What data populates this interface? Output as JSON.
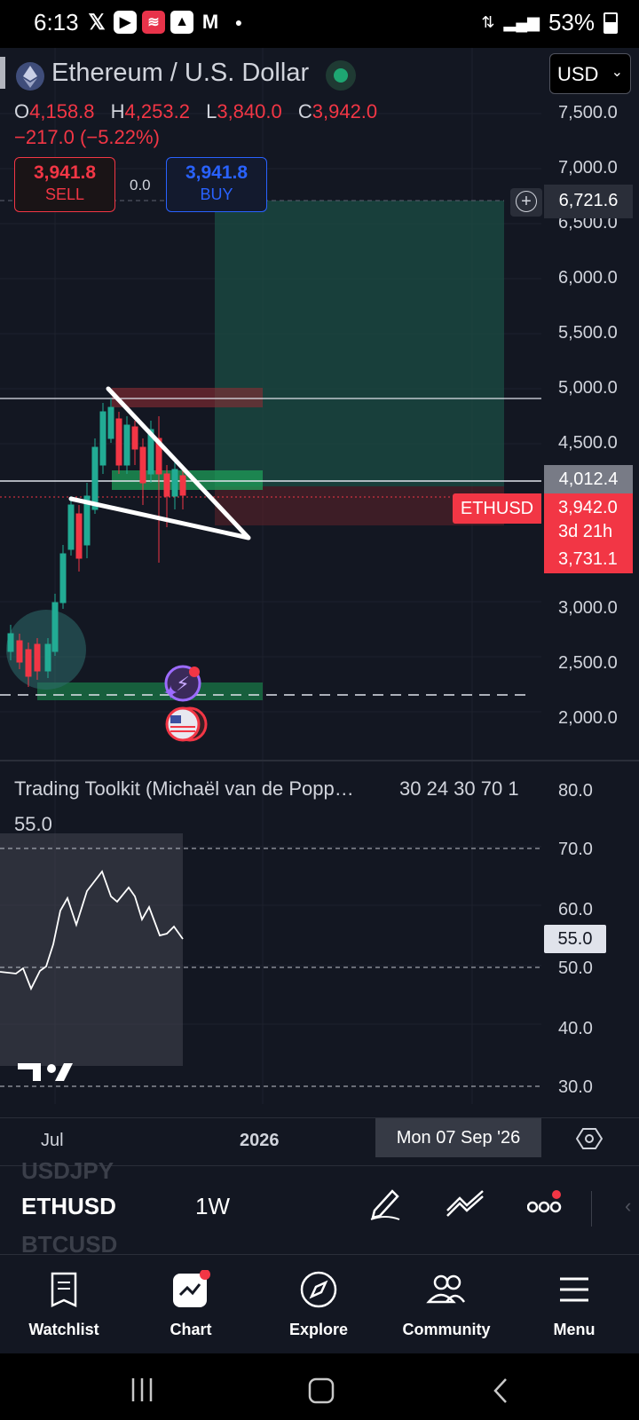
{
  "status_bar": {
    "time": "6:13",
    "battery": "53%"
  },
  "header": {
    "symbol_title": "Ethereum / U.S. Dollar",
    "currency": "USD",
    "ohlc": [
      {
        "key": "O",
        "value": "4,158.8"
      },
      {
        "key": "H",
        "value": "4,253.2"
      },
      {
        "key": "L",
        "value": "3,840.0"
      },
      {
        "key": "C",
        "value": "3,942.0"
      }
    ],
    "change": "−217.0 (−5.22%)"
  },
  "trade": {
    "sell_price": "3,941.8",
    "sell_label": "SELL",
    "spread": "0.0",
    "buy_price": "3,941.8",
    "buy_label": "BUY"
  },
  "price_axis": {
    "ticks": [
      "7,500.0",
      "7,000.0",
      "6,500.0",
      "6,000.0",
      "5,500.0",
      "5,000.0",
      "4,500.0",
      "3,000.0",
      "2,500.0",
      "2,000.0"
    ],
    "crosshair_price": "6,721.6",
    "line_price": "4,012.4",
    "symbol_tag": "ETHUSD",
    "last_price": "3,942.0",
    "countdown": "3d 21h",
    "low_tag": "3,731.1"
  },
  "indicator": {
    "title": "Trading Toolkit (Michaël van de Popp…",
    "params": "30 24 30 70 1",
    "value": "55.0",
    "ticks": [
      "80.0",
      "70.0",
      "60.0",
      "50.0",
      "40.0",
      "30.0"
    ],
    "value_tag": "55.0"
  },
  "time_axis": {
    "labels": [
      "Jul",
      "2026"
    ],
    "crosshair_date": "Mon 07 Sep '26"
  },
  "toolbar": {
    "symbol_prev": "USDJPY",
    "symbol": "ETHUSD",
    "symbol_next": "BTCUSD",
    "interval": "1W"
  },
  "nav": [
    {
      "label": "Watchlist"
    },
    {
      "label": "Chart"
    },
    {
      "label": "Explore"
    },
    {
      "label": "Community"
    },
    {
      "label": "Menu"
    }
  ],
  "colors": {
    "up": "#22ab94",
    "down": "#f23645",
    "accent": "#2962ff",
    "background": "#131722"
  }
}
